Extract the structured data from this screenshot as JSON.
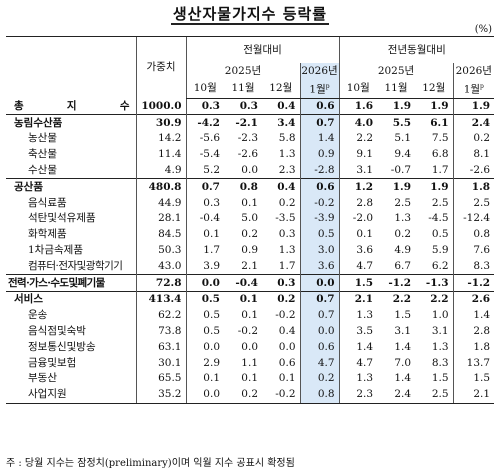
{
  "title": "생산자물가지수 등락률",
  "unit": "(%)",
  "header": {
    "weight": "가중치",
    "mom": "전월대비",
    "yoy": "전년동월대비",
    "year_prev": "2025년",
    "year_cur": "2026년",
    "months": [
      "10월",
      "11월",
      "12월",
      "1월"
    ],
    "prelim_mark": "p"
  },
  "rows": [
    {
      "name": "총 지 수",
      "level": 0,
      "weight": "1000.0",
      "mom": [
        "0.3",
        "0.3",
        "0.4",
        "0.6"
      ],
      "yoy": [
        "1.6",
        "1.9",
        "1.9",
        "1.9"
      ]
    },
    {
      "name": "농림수산품",
      "level": 0,
      "weight": "30.9",
      "mom": [
        "-4.2",
        "-2.1",
        "3.4",
        "0.7"
      ],
      "yoy": [
        "4.0",
        "5.5",
        "6.1",
        "2.4"
      ]
    },
    {
      "name": "농산물",
      "level": 1,
      "weight": "14.2",
      "mom": [
        "-5.6",
        "-2.3",
        "5.8",
        "1.4"
      ],
      "yoy": [
        "2.2",
        "5.1",
        "7.5",
        "0.2"
      ]
    },
    {
      "name": "축산물",
      "level": 1,
      "weight": "11.4",
      "mom": [
        "-5.4",
        "-2.6",
        "1.3",
        "0.9"
      ],
      "yoy": [
        "9.1",
        "9.4",
        "6.8",
        "8.1"
      ]
    },
    {
      "name": "수산물",
      "level": 1,
      "weight": "4.9",
      "mom": [
        "5.2",
        "0.0",
        "2.3",
        "-2.8"
      ],
      "yoy": [
        "3.1",
        "-0.7",
        "1.7",
        "-2.6"
      ]
    },
    {
      "name": "공산품",
      "level": 0,
      "weight": "480.8",
      "mom": [
        "0.7",
        "0.8",
        "0.4",
        "0.6"
      ],
      "yoy": [
        "1.2",
        "1.9",
        "1.9",
        "1.8"
      ]
    },
    {
      "name": "음식료품",
      "level": 1,
      "weight": "44.9",
      "mom": [
        "0.3",
        "0.1",
        "0.2",
        "-0.2"
      ],
      "yoy": [
        "2.8",
        "2.5",
        "2.5",
        "2.5"
      ]
    },
    {
      "name": "석탄및석유제품",
      "level": 1,
      "weight": "28.1",
      "mom": [
        "-0.4",
        "5.0",
        "-3.5",
        "-3.9"
      ],
      "yoy": [
        "-2.0",
        "1.3",
        "-4.5",
        "-12.4"
      ]
    },
    {
      "name": "화학제품",
      "level": 1,
      "weight": "84.5",
      "mom": [
        "0.1",
        "0.2",
        "0.3",
        "0.5"
      ],
      "yoy": [
        "0.1",
        "0.2",
        "0.5",
        "0.8"
      ]
    },
    {
      "name": "1차금속제품",
      "level": 1,
      "weight": "50.3",
      "mom": [
        "1.7",
        "0.9",
        "1.3",
        "3.0"
      ],
      "yoy": [
        "3.6",
        "4.9",
        "5.9",
        "7.6"
      ]
    },
    {
      "name": "컴퓨터·전자및광학기기",
      "level": 1,
      "tight": true,
      "weight": "43.0",
      "mom": [
        "3.9",
        "2.1",
        "1.7",
        "3.6"
      ],
      "yoy": [
        "4.7",
        "6.7",
        "6.2",
        "8.3"
      ]
    },
    {
      "name": "전력·가스·수도및폐기물",
      "level": 0,
      "tight": true,
      "weight": "72.8",
      "mom": [
        "0.0",
        "-0.4",
        "0.3",
        "0.0"
      ],
      "yoy": [
        "1.5",
        "-1.2",
        "-1.3",
        "-1.2"
      ]
    },
    {
      "name": "서비스",
      "level": 0,
      "weight": "413.4",
      "mom": [
        "0.5",
        "0.1",
        "0.2",
        "0.7"
      ],
      "yoy": [
        "2.1",
        "2.2",
        "2.2",
        "2.6"
      ]
    },
    {
      "name": "운송",
      "level": 1,
      "weight": "62.2",
      "mom": [
        "0.5",
        "0.1",
        "-0.2",
        "0.7"
      ],
      "yoy": [
        "1.3",
        "1.5",
        "1.0",
        "1.4"
      ]
    },
    {
      "name": "음식점및숙박",
      "level": 1,
      "weight": "73.8",
      "mom": [
        "0.5",
        "-0.2",
        "0.4",
        "0.0"
      ],
      "yoy": [
        "3.5",
        "3.1",
        "3.1",
        "2.8"
      ]
    },
    {
      "name": "정보통신및방송",
      "level": 1,
      "weight": "63.1",
      "mom": [
        "0.0",
        "0.0",
        "0.0",
        "0.6"
      ],
      "yoy": [
        "1.4",
        "1.4",
        "1.3",
        "1.8"
      ]
    },
    {
      "name": "금융및보험",
      "level": 1,
      "weight": "30.1",
      "mom": [
        "2.9",
        "1.1",
        "0.6",
        "4.7"
      ],
      "yoy": [
        "4.7",
        "7.0",
        "8.3",
        "13.7"
      ]
    },
    {
      "name": "부동산",
      "level": 1,
      "weight": "65.5",
      "mom": [
        "0.1",
        "0.1",
        "0.1",
        "0.2"
      ],
      "yoy": [
        "1.3",
        "1.4",
        "1.5",
        "1.5"
      ]
    },
    {
      "name": "사업지원",
      "level": 1,
      "weight": "35.2",
      "mom": [
        "0.0",
        "0.2",
        "-0.2",
        "0.8"
      ],
      "yoy": [
        "2.3",
        "2.4",
        "2.5",
        "2.1"
      ]
    }
  ],
  "footnote": "주 : 당월 지수는 잠정치(preliminary)이며 익월 지수 공표시 확정됨"
}
